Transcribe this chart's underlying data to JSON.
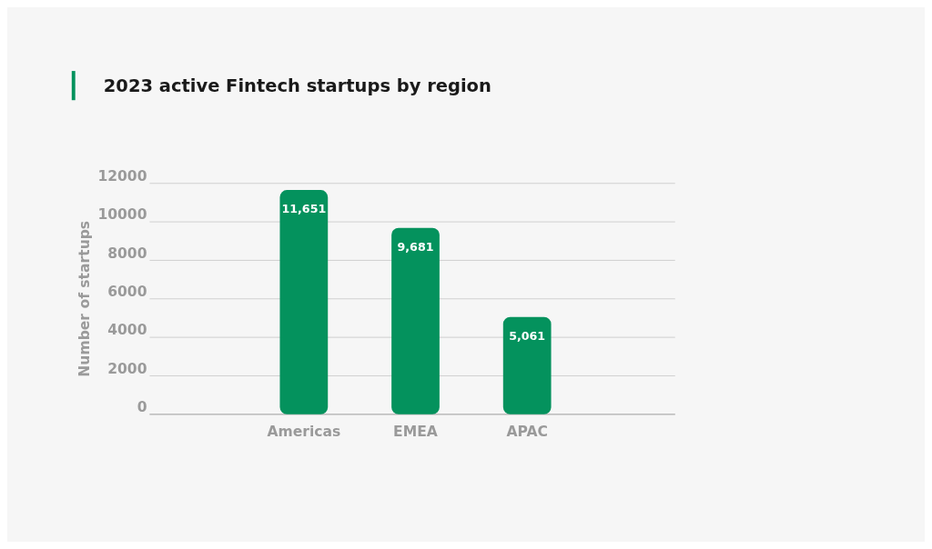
{
  "chart_data": {
    "type": "bar",
    "title": "2023 active Fintech startups by region",
    "ylabel": "Number of startups",
    "categories": [
      "Americas",
      "EMEA",
      "APAC"
    ],
    "values": [
      11651,
      9681,
      5061
    ],
    "color": "#04925d",
    "ylim": [
      0,
      12000
    ],
    "yticks": [
      0,
      2000,
      4000,
      6000,
      8000,
      10000,
      12000
    ],
    "grid": "y",
    "value_labels": [
      "11,651",
      "9,681",
      "5,061"
    ]
  }
}
